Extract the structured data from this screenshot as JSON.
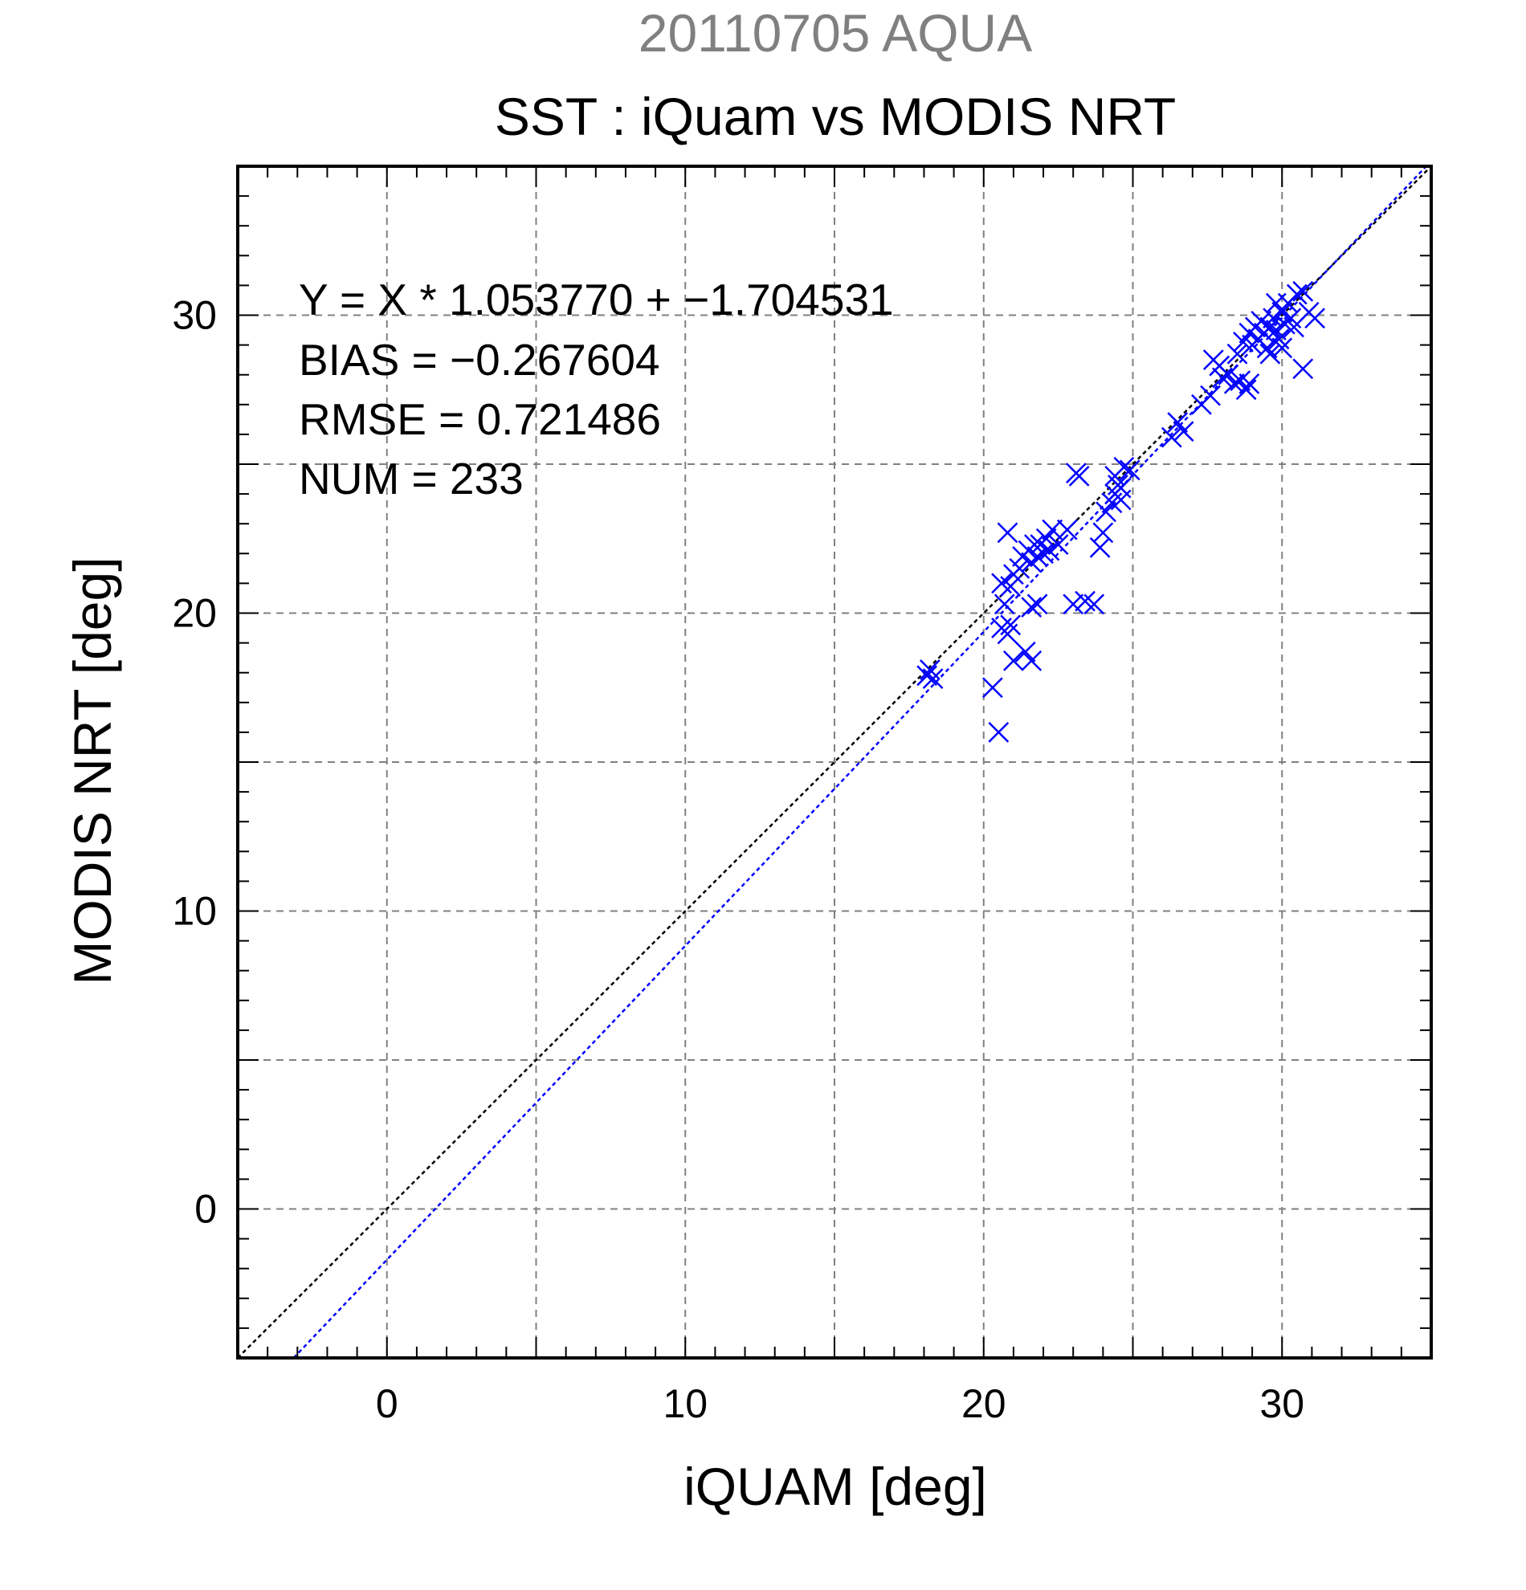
{
  "chart_data": {
    "type": "scatter",
    "title": "SST : iQuam vs MODIS NRT",
    "subtitle": "20110705 AQUA",
    "xlabel": "iQUAM [deg]",
    "ylabel": "MODIS NRT [deg]",
    "xlim": [
      -5,
      35
    ],
    "ylim": [
      -5,
      35
    ],
    "xticks": [
      0,
      10,
      20,
      30
    ],
    "yticks": [
      0,
      10,
      20,
      30
    ],
    "xtick_labels": [
      "0",
      "10",
      "20",
      "30"
    ],
    "ytick_labels": [
      "0",
      "10",
      "20",
      "30"
    ],
    "grid": true,
    "stats": [
      "Y = X * 1.053770 + −1.704531",
      "BIAS = −0.267604",
      "RMSE = 0.721486",
      "NUM = 233"
    ],
    "regression": {
      "slope": 1.05377,
      "intercept": -1.704531
    },
    "colors": {
      "points": "#0000ff",
      "one_to_one": "#000000",
      "fit": "#0000ff",
      "subtitle": "#808080"
    },
    "series": [
      {
        "points": [
          [
            18.1,
            17.9
          ],
          [
            18.2,
            18.1
          ],
          [
            18.3,
            17.8
          ],
          [
            20.3,
            17.5
          ],
          [
            20.5,
            16.0
          ],
          [
            20.6,
            19.5
          ],
          [
            20.8,
            19.3
          ],
          [
            20.9,
            19.6
          ],
          [
            20.7,
            20.3
          ],
          [
            20.6,
            21.0
          ],
          [
            20.8,
            22.7
          ],
          [
            21.0,
            21.3
          ],
          [
            20.9,
            20.9
          ],
          [
            21.2,
            21.5
          ],
          [
            21.0,
            18.4
          ],
          [
            21.4,
            18.7
          ],
          [
            21.6,
            18.4
          ],
          [
            21.3,
            21.9
          ],
          [
            21.5,
            22.1
          ],
          [
            21.6,
            21.7
          ],
          [
            21.7,
            22.3
          ],
          [
            21.8,
            21.9
          ],
          [
            21.9,
            22.3
          ],
          [
            22.0,
            22.0
          ],
          [
            22.1,
            22.5
          ],
          [
            22.2,
            22.1
          ],
          [
            22.3,
            22.8
          ],
          [
            22.5,
            22.3
          ],
          [
            21.6,
            20.2
          ],
          [
            21.8,
            20.3
          ],
          [
            23.1,
            24.7
          ],
          [
            23.2,
            24.6
          ],
          [
            22.8,
            22.8
          ],
          [
            23.0,
            20.3
          ],
          [
            23.4,
            20.4
          ],
          [
            23.7,
            20.3
          ],
          [
            23.9,
            22.2
          ],
          [
            24.0,
            22.7
          ],
          [
            24.1,
            23.4
          ],
          [
            24.3,
            23.7
          ],
          [
            24.4,
            24.0
          ],
          [
            24.5,
            24.3
          ],
          [
            24.6,
            23.8
          ],
          [
            24.4,
            24.6
          ],
          [
            24.7,
            24.9
          ],
          [
            24.9,
            24.8
          ],
          [
            24.6,
            24.2
          ],
          [
            26.3,
            25.9
          ],
          [
            26.5,
            26.4
          ],
          [
            26.7,
            26.1
          ],
          [
            27.3,
            27.0
          ],
          [
            27.6,
            27.3
          ],
          [
            27.7,
            28.5
          ],
          [
            27.9,
            28.3
          ],
          [
            28.0,
            27.9
          ],
          [
            28.2,
            28.0
          ],
          [
            28.4,
            27.7
          ],
          [
            28.5,
            28.7
          ],
          [
            28.6,
            27.8
          ],
          [
            28.8,
            27.5
          ],
          [
            28.9,
            27.7
          ],
          [
            28.7,
            29.1
          ],
          [
            28.9,
            29.4
          ],
          [
            29.0,
            29.0
          ],
          [
            29.1,
            29.6
          ],
          [
            29.2,
            29.2
          ],
          [
            29.3,
            29.8
          ],
          [
            29.4,
            29.4
          ],
          [
            29.5,
            28.9
          ],
          [
            29.6,
            29.6
          ],
          [
            29.7,
            29.9
          ],
          [
            29.8,
            29.5
          ],
          [
            29.9,
            29.2
          ],
          [
            30.0,
            30.1
          ],
          [
            30.1,
            29.7
          ],
          [
            30.2,
            30.4
          ],
          [
            30.3,
            29.9
          ],
          [
            30.5,
            30.7
          ],
          [
            30.7,
            30.8
          ],
          [
            30.9,
            30.1
          ],
          [
            31.1,
            29.9
          ],
          [
            30.7,
            28.2
          ],
          [
            29.6,
            28.7
          ],
          [
            30.0,
            28.9
          ],
          [
            30.4,
            29.6
          ],
          [
            29.8,
            30.4
          ]
        ]
      }
    ]
  }
}
